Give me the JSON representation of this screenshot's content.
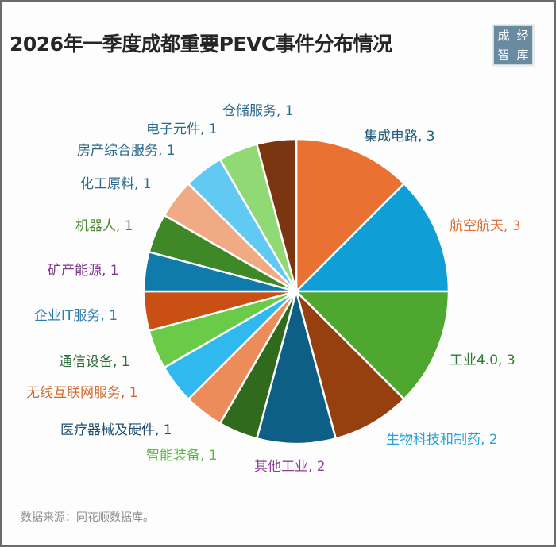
{
  "header": {
    "title": "2026年一季度成都重要PEVC事件分布情况",
    "logo_chars": [
      "成",
      "经",
      "智",
      "库"
    ]
  },
  "footer": {
    "source": "数据来源：同花顺数据库。"
  },
  "chart_data": {
    "type": "pie",
    "title": "2026年一季度成都重要PEVC事件分布情况",
    "start_angle": "12 o'clock",
    "direction": "clockwise",
    "total": 24,
    "categories": [
      "集成电路",
      "航空航天",
      "工业4.0",
      "生物科技和制药",
      "其他工业",
      "智能装备",
      "医疗器械及硬件",
      "无线互联网服务",
      "通信设备",
      "企业IT服务",
      "矿产能源",
      "机器人",
      "化工原料",
      "房产综合服务",
      "电子元件",
      "仓储服务"
    ],
    "values": [
      3,
      3,
      3,
      2,
      2,
      1,
      1,
      1,
      1,
      1,
      1,
      1,
      1,
      1,
      1,
      1
    ],
    "colors": [
      "#E97132",
      "#0F9ED5",
      "#4EA72E",
      "#96400F",
      "#0D5F85",
      "#306B1D",
      "#ED8C5B",
      "#30B9EE",
      "#6ACB48",
      "#C94F13",
      "#0F7BAA",
      "#3E8827",
      "#F0AA84",
      "#62C9F2",
      "#90D975",
      "#7B3510"
    ],
    "labels": [
      {
        "text": "集成电路, 3",
        "color": "#1F5C7A"
      },
      {
        "text": "航空航天, 3",
        "color": "#E07033"
      },
      {
        "text": "工业4.0, 3",
        "color": "#2E7A2E"
      },
      {
        "text": "生物科技和制药, 2",
        "color": "#2AA3D8"
      },
      {
        "text": "其他工业, 2",
        "color": "#8E3F98"
      },
      {
        "text": "智能装备, 1",
        "color": "#5CB840"
      },
      {
        "text": "医疗器械及硬件, 1",
        "color": "#1F4E6E"
      },
      {
        "text": "无线互联网服务, 1",
        "color": "#D06A30"
      },
      {
        "text": "通信设备, 1",
        "color": "#2E6B3A"
      },
      {
        "text": "企业IT服务, 1",
        "color": "#2A7CB0"
      },
      {
        "text": "矿产能源, 1",
        "color": "#7E3A8C"
      },
      {
        "text": "机器人, 1",
        "color": "#4E8A34"
      },
      {
        "text": "化工原料, 1",
        "color": "#2A6A8C"
      },
      {
        "text": "房产综合服务, 1",
        "color": "#2A6A8C"
      },
      {
        "text": "电子元件, 1",
        "color": "#2A6A8C"
      },
      {
        "text": "仓储服务, 1",
        "color": "#2A6A8C"
      }
    ],
    "legend": "none (data labels beside slices)"
  }
}
